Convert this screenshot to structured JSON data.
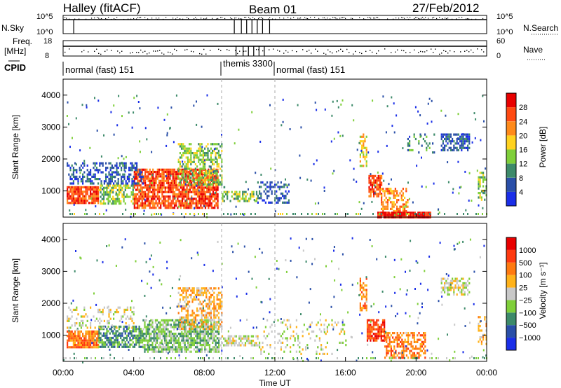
{
  "header": {
    "station": "Halley (fitACF)",
    "beam": "Beam 01",
    "date": "27/Feb/2012"
  },
  "status_panels": {
    "nsky_label": "N.Sky",
    "nsky_ticks": [
      "10^5",
      "10^0"
    ],
    "nsearch_label": "N.Search",
    "nsearch_ticks": [
      "10^5",
      "10^0"
    ],
    "freq_label": "Freq.",
    "freq_unit": "[MHz]",
    "freq_ticks": [
      "18",
      "8"
    ],
    "nave_label": "Nave",
    "nave_ticks": [
      "60",
      "0"
    ],
    "cpid_label": "CPID",
    "cpid_segments": [
      {
        "label": "normal (fast) 151",
        "start_h": 0,
        "end_h": 9.9
      },
      {
        "label": "themis 3300",
        "start_h": 9.9,
        "end_h": 12.0
      },
      {
        "label": "normal (fast) 151",
        "start_h": 12.0,
        "end_h": 24
      }
    ]
  },
  "chart_data": [
    {
      "type": "heatmap",
      "name": "power",
      "ylabel": "Slant Range [km]",
      "yticks": [
        "1000",
        "2000",
        "3000",
        "4000"
      ],
      "xlim": [
        0,
        24
      ],
      "ylim": [
        180,
        4500
      ],
      "colorbar_label": "Power [dB]",
      "colorbar_ticks": [
        "28",
        "24",
        "20",
        "16",
        "12",
        "8",
        "4"
      ],
      "colors": [
        "#1a2ee8",
        "#2a4fa8",
        "#3d8a6a",
        "#7fcf3a",
        "#ffd21f",
        "#ff8a1a",
        "#ff4a12",
        "#e80000"
      ],
      "blobs": [
        {
          "x": [
            0.2,
            2.0
          ],
          "y": [
            650,
            1150
          ],
          "level": 6,
          "density": 0.85
        },
        {
          "x": [
            2.0,
            4.0
          ],
          "y": [
            600,
            1200
          ],
          "level": 3,
          "density": 0.6
        },
        {
          "x": [
            4.0,
            8.8
          ],
          "y": [
            500,
            1700
          ],
          "level": 6,
          "density": 0.8
        },
        {
          "x": [
            6.5,
            9.0
          ],
          "y": [
            1200,
            2500
          ],
          "level": 3,
          "density": 0.55
        },
        {
          "x": [
            0.2,
            4.5
          ],
          "y": [
            1200,
            1900
          ],
          "level": 1,
          "density": 0.45
        },
        {
          "x": [
            9.0,
            11.0
          ],
          "y": [
            700,
            1000
          ],
          "level": 3,
          "density": 0.5
        },
        {
          "x": [
            11.0,
            12.8
          ],
          "y": [
            600,
            1300
          ],
          "level": 1,
          "density": 0.35
        },
        {
          "x": [
            17.3,
            18.0
          ],
          "y": [
            800,
            1500
          ],
          "level": 6,
          "density": 0.8
        },
        {
          "x": [
            18.0,
            19.5
          ],
          "y": [
            300,
            1100
          ],
          "level": 5,
          "density": 0.55
        },
        {
          "x": [
            17.8,
            20.8
          ],
          "y": [
            190,
            350
          ],
          "level": 7,
          "density": 0.95
        },
        {
          "x": [
            16.8,
            17.2
          ],
          "y": [
            1800,
            2800
          ],
          "level": 4,
          "density": 0.6
        },
        {
          "x": [
            21.4,
            23.0
          ],
          "y": [
            2300,
            2800
          ],
          "level": 1,
          "density": 0.6
        },
        {
          "x": [
            23.5,
            24.0
          ],
          "y": [
            700,
            1600
          ],
          "level": 3,
          "density": 0.5
        },
        {
          "x": [
            19.5,
            21.0
          ],
          "y": [
            2200,
            2800
          ],
          "level": 2,
          "density": 0.25
        }
      ]
    },
    {
      "type": "heatmap",
      "name": "velocity",
      "ylabel": "Slant Range [km]",
      "yticks": [
        "1000",
        "2000",
        "3000",
        "4000"
      ],
      "xlim": [
        0,
        24
      ],
      "ylim": [
        180,
        4500
      ],
      "xlabel": "Time UT",
      "xticks": [
        "00:00",
        "04:00",
        "08:00",
        "12:00",
        "16:00",
        "20:00",
        "00:00"
      ],
      "colorbar_label": "Velocity [m s⁻¹]",
      "colorbar_ticks": [
        "1000",
        "500",
        "100",
        "25",
        "−25",
        "−100",
        "−500",
        "−1000"
      ],
      "colors": [
        "#1a2ee8",
        "#2a4fa8",
        "#3d8a6a",
        "#7fcf3a",
        "#c8c8c8",
        "#ffb21a",
        "#ff7a10",
        "#ff3a10",
        "#e80000"
      ],
      "blobs": [
        {
          "x": [
            0.2,
            2.0
          ],
          "y": [
            650,
            1150
          ],
          "level": 6,
          "density": 0.85
        },
        {
          "x": [
            2.0,
            4.5
          ],
          "y": [
            600,
            1300
          ],
          "level": 2,
          "density": 0.7
        },
        {
          "x": [
            4.5,
            8.8
          ],
          "y": [
            500,
            1500
          ],
          "level": 3,
          "density": 0.75
        },
        {
          "x": [
            6.5,
            9.0
          ],
          "y": [
            1200,
            2500
          ],
          "level": 5,
          "density": 0.5
        },
        {
          "x": [
            8.8,
            11.0
          ],
          "y": [
            700,
            1000
          ],
          "level": 4,
          "density": 0.5
        },
        {
          "x": [
            0.2,
            4.0
          ],
          "y": [
            1200,
            1900
          ],
          "level": 4,
          "density": 0.25
        },
        {
          "x": [
            17.2,
            18.2
          ],
          "y": [
            800,
            1500
          ],
          "level": 7,
          "density": 0.8
        },
        {
          "x": [
            18.2,
            20.5
          ],
          "y": [
            300,
            1100
          ],
          "level": 6,
          "density": 0.55
        },
        {
          "x": [
            16.8,
            17.2
          ],
          "y": [
            1800,
            2800
          ],
          "level": 6,
          "density": 0.6
        },
        {
          "x": [
            21.4,
            23.0
          ],
          "y": [
            2300,
            2800
          ],
          "level": 4,
          "density": 0.6
        },
        {
          "x": [
            23.5,
            24.0
          ],
          "y": [
            700,
            1600
          ],
          "level": 5,
          "density": 0.4
        },
        {
          "x": [
            11.0,
            16.0
          ],
          "y": [
            400,
            1500
          ],
          "level": 4,
          "density": 0.15
        }
      ]
    }
  ]
}
